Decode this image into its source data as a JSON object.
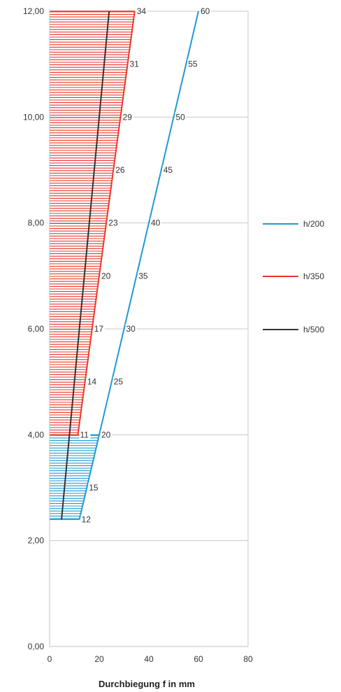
{
  "chart_data": {
    "type": "line",
    "xlabel": "Durchbiegung f in mm",
    "ylabel": "",
    "xlim": [
      0,
      80
    ],
    "ylim": [
      0,
      12
    ],
    "x_ticks": [
      "0",
      "20",
      "40",
      "60",
      "80"
    ],
    "y_ticks": [
      "0,00",
      "2,00",
      "4,00",
      "6,00",
      "8,00",
      "10,00",
      "12,00"
    ],
    "grid": "horizontal",
    "legend_position": "right",
    "series": [
      {
        "name": "h/200",
        "color": "#1f9ad1",
        "points": [
          [
            12,
            2.4
          ],
          [
            20,
            4.0
          ],
          [
            60,
            12.0
          ]
        ],
        "labels": [
          {
            "text": "12",
            "x": 12,
            "y": 2.4
          },
          {
            "text": "15",
            "x": 15,
            "y": 3.0
          },
          {
            "text": "20",
            "x": 20,
            "y": 4.0
          },
          {
            "text": "25",
            "x": 25,
            "y": 5.0
          },
          {
            "text": "30",
            "x": 30,
            "y": 6.0
          },
          {
            "text": "35",
            "x": 35,
            "y": 7.0
          },
          {
            "text": "40",
            "x": 40,
            "y": 8.0
          },
          {
            "text": "45",
            "x": 45,
            "y": 9.0
          },
          {
            "text": "50",
            "x": 50,
            "y": 10.0
          },
          {
            "text": "55",
            "x": 55,
            "y": 11.0
          },
          {
            "text": "60",
            "x": 60,
            "y": 12.0
          }
        ],
        "hatch": {
          "x_start": 0,
          "y_from": 2.4,
          "y_to": 4.0
        }
      },
      {
        "name": "h/350",
        "color": "#e8392c",
        "points": [
          [
            11.4,
            4.0
          ],
          [
            34.3,
            12.0
          ]
        ],
        "labels": [
          {
            "text": "11",
            "x": 11.4,
            "y": 4.0
          },
          {
            "text": "14",
            "x": 14.3,
            "y": 5.0
          },
          {
            "text": "17",
            "x": 17.1,
            "y": 6.0
          },
          {
            "text": "20",
            "x": 20.0,
            "y": 7.0
          },
          {
            "text": "23",
            "x": 22.9,
            "y": 8.0
          },
          {
            "text": "26",
            "x": 25.7,
            "y": 9.0
          },
          {
            "text": "29",
            "x": 28.6,
            "y": 10.0
          },
          {
            "text": "31",
            "x": 31.4,
            "y": 11.0
          },
          {
            "text": "34",
            "x": 34.3,
            "y": 12.0
          }
        ],
        "hatch": {
          "x_start": 0,
          "y_from": 4.0,
          "y_to": 12.0
        }
      },
      {
        "name": "h/500",
        "color": "#333333",
        "points": [
          [
            4.8,
            2.4
          ],
          [
            24.0,
            12.0
          ]
        ],
        "labels": [],
        "hatch": null
      }
    ]
  }
}
